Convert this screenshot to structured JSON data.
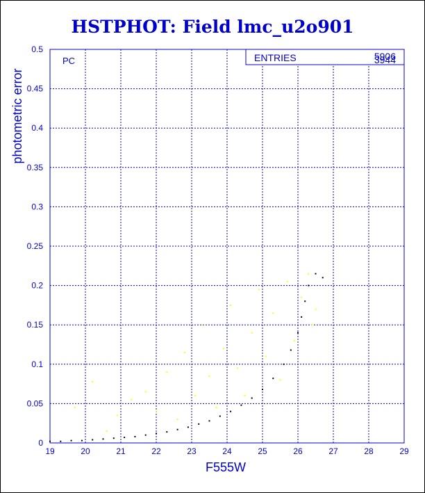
{
  "chart_data": {
    "type": "scatter",
    "title": "HSTPHOT: Field lmc_u2o901",
    "xlabel": "F555W",
    "ylabel": "photometric error",
    "xlim": [
      19,
      29
    ],
    "ylim": [
      0,
      0.5
    ],
    "x_ticks": [
      "19",
      "20",
      "21",
      "22",
      "23",
      "24",
      "25",
      "26",
      "27",
      "28",
      "29"
    ],
    "y_ticks": [
      "0",
      "0.05",
      "0.1",
      "0.15",
      "0.2",
      "0.25",
      "0.3",
      "0.35",
      "0.4",
      "0.45",
      "0.5"
    ],
    "grid": true,
    "panel_label": "PC",
    "stats_box": {
      "label": "ENTRIES",
      "values": [
        "5906",
        "3944"
      ],
      "placement": "top-right"
    },
    "series": [
      {
        "color": "#000000",
        "points": [
          [
            19.0,
            0.002
          ],
          [
            19.3,
            0.002
          ],
          [
            19.6,
            0.003
          ],
          [
            19.9,
            0.003
          ],
          [
            20.2,
            0.004
          ],
          [
            20.5,
            0.005
          ],
          [
            20.8,
            0.006
          ],
          [
            21.1,
            0.007
          ],
          [
            21.4,
            0.008
          ],
          [
            21.7,
            0.01
          ],
          [
            22.0,
            0.012
          ],
          [
            22.3,
            0.014
          ],
          [
            22.6,
            0.017
          ],
          [
            22.9,
            0.02
          ],
          [
            23.2,
            0.024
          ],
          [
            23.5,
            0.028
          ],
          [
            23.8,
            0.034
          ],
          [
            24.1,
            0.04
          ],
          [
            24.4,
            0.048
          ],
          [
            24.7,
            0.057
          ],
          [
            25.0,
            0.068
          ],
          [
            25.3,
            0.082
          ],
          [
            25.6,
            0.1
          ],
          [
            25.8,
            0.118
          ],
          [
            26.0,
            0.14
          ],
          [
            26.1,
            0.16
          ],
          [
            26.2,
            0.18
          ],
          [
            26.3,
            0.2
          ],
          [
            26.5,
            0.215
          ],
          [
            26.7,
            0.21
          ]
        ]
      },
      {
        "color": "#ffff00",
        "points": [
          [
            19.7,
            0.045
          ],
          [
            20.2,
            0.078
          ],
          [
            20.6,
            0.015
          ],
          [
            20.9,
            0.035
          ],
          [
            21.3,
            0.055
          ],
          [
            21.7,
            0.065
          ],
          [
            22.0,
            0.04
          ],
          [
            22.3,
            0.09
          ],
          [
            22.6,
            0.03
          ],
          [
            22.8,
            0.115
          ],
          [
            23.1,
            0.06
          ],
          [
            23.3,
            0.15
          ],
          [
            23.5,
            0.085
          ],
          [
            23.7,
            0.045
          ],
          [
            23.9,
            0.12
          ],
          [
            24.1,
            0.175
          ],
          [
            24.3,
            0.095
          ],
          [
            24.5,
            0.06
          ],
          [
            24.7,
            0.14
          ],
          [
            24.9,
            0.195
          ],
          [
            25.1,
            0.11
          ],
          [
            25.3,
            0.165
          ],
          [
            25.5,
            0.08
          ],
          [
            25.7,
            0.205
          ],
          [
            25.9,
            0.13
          ],
          [
            26.1,
            0.185
          ],
          [
            26.3,
            0.215
          ],
          [
            26.5,
            0.17
          ],
          [
            26.4,
            0.15
          ]
        ]
      }
    ]
  }
}
